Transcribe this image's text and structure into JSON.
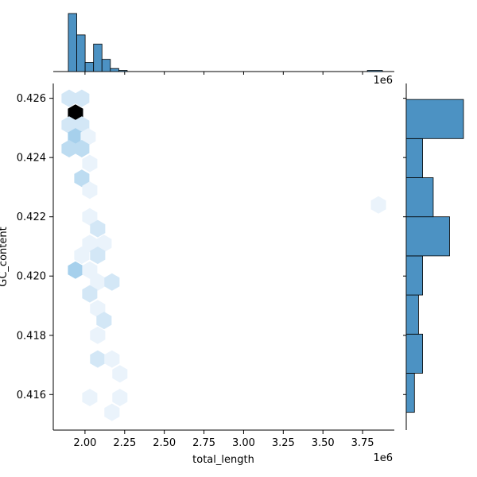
{
  "chart_data": {
    "type": "hexbin",
    "title": "",
    "xlabel": "total_length",
    "ylabel": "GC_content",
    "x_offset_label": "1e6",
    "top_offset_label": "1e6",
    "xlim": [
      1.8,
      3.95
    ],
    "ylim": [
      0.4148,
      0.4265
    ],
    "x_ticks": [
      2.0,
      2.25,
      2.5,
      2.75,
      3.0,
      3.25,
      3.5,
      3.75
    ],
    "x_tick_labels": [
      "2.00",
      "2.25",
      "2.50",
      "2.75",
      "3.00",
      "3.25",
      "3.50",
      "3.75"
    ],
    "y_ticks": [
      0.416,
      0.418,
      0.42,
      0.422,
      0.424,
      0.426
    ],
    "y_tick_labels": [
      "0.416",
      "0.418",
      "0.420",
      "0.422",
      "0.424",
      "0.426"
    ],
    "colors": {
      "histogram": "#4c92c3",
      "hex_max": "#000000",
      "hex_min": "#eaf3fb",
      "hex_mid": "#93c6e8"
    },
    "hexbins": [
      {
        "x": 1.9,
        "y": 0.426,
        "count": 2
      },
      {
        "x": 1.98,
        "y": 0.426,
        "count": 2
      },
      {
        "x": 1.94,
        "y": 0.4255,
        "count": 12
      },
      {
        "x": 1.9,
        "y": 0.4251,
        "count": 2
      },
      {
        "x": 1.98,
        "y": 0.4251,
        "count": 2
      },
      {
        "x": 1.94,
        "y": 0.4247,
        "count": 4
      },
      {
        "x": 2.02,
        "y": 0.4247,
        "count": 1
      },
      {
        "x": 1.9,
        "y": 0.4243,
        "count": 3
      },
      {
        "x": 1.98,
        "y": 0.4243,
        "count": 3
      },
      {
        "x": 2.03,
        "y": 0.4238,
        "count": 1
      },
      {
        "x": 1.98,
        "y": 0.4233,
        "count": 3
      },
      {
        "x": 2.03,
        "y": 0.4229,
        "count": 1
      },
      {
        "x": 3.85,
        "y": 0.4224,
        "count": 1
      },
      {
        "x": 2.03,
        "y": 0.422,
        "count": 1
      },
      {
        "x": 2.08,
        "y": 0.4216,
        "count": 2
      },
      {
        "x": 2.03,
        "y": 0.4211,
        "count": 1
      },
      {
        "x": 2.12,
        "y": 0.4211,
        "count": 1
      },
      {
        "x": 2.08,
        "y": 0.4207,
        "count": 2
      },
      {
        "x": 1.98,
        "y": 0.4207,
        "count": 1
      },
      {
        "x": 1.94,
        "y": 0.4202,
        "count": 4
      },
      {
        "x": 2.03,
        "y": 0.4202,
        "count": 1
      },
      {
        "x": 2.08,
        "y": 0.4198,
        "count": 1
      },
      {
        "x": 2.17,
        "y": 0.4198,
        "count": 2
      },
      {
        "x": 2.03,
        "y": 0.4194,
        "count": 2
      },
      {
        "x": 2.08,
        "y": 0.4189,
        "count": 1
      },
      {
        "x": 2.12,
        "y": 0.4185,
        "count": 2
      },
      {
        "x": 2.08,
        "y": 0.418,
        "count": 1
      },
      {
        "x": 2.08,
        "y": 0.4172,
        "count": 2
      },
      {
        "x": 2.17,
        "y": 0.4172,
        "count": 1
      },
      {
        "x": 2.22,
        "y": 0.4167,
        "count": 1
      },
      {
        "x": 2.03,
        "y": 0.4159,
        "count": 1
      },
      {
        "x": 2.22,
        "y": 0.4159,
        "count": 1
      },
      {
        "x": 2.17,
        "y": 0.4154,
        "count": 1
      }
    ],
    "top_hist": {
      "bin_edges": [
        1.895,
        1.948,
        2.001,
        2.054,
        2.107,
        2.16,
        2.213
      ],
      "counts": [
        19,
        12,
        3,
        9,
        4,
        1
      ],
      "extra_bars": [
        {
          "x0": 2.213,
          "x1": 2.266,
          "count": 0.2
        },
        {
          "x0": 3.78,
          "x1": 3.875,
          "count": 0.2
        }
      ]
    },
    "right_hist": {
      "bin_edges": [
        0.4154,
        0.41672,
        0.41804,
        0.41936,
        0.42068,
        0.422,
        0.42332,
        0.42464,
        0.42596
      ],
      "counts": [
        1,
        2,
        1.5,
        2,
        5.3,
        3.3,
        2.0,
        7
      ]
    }
  }
}
